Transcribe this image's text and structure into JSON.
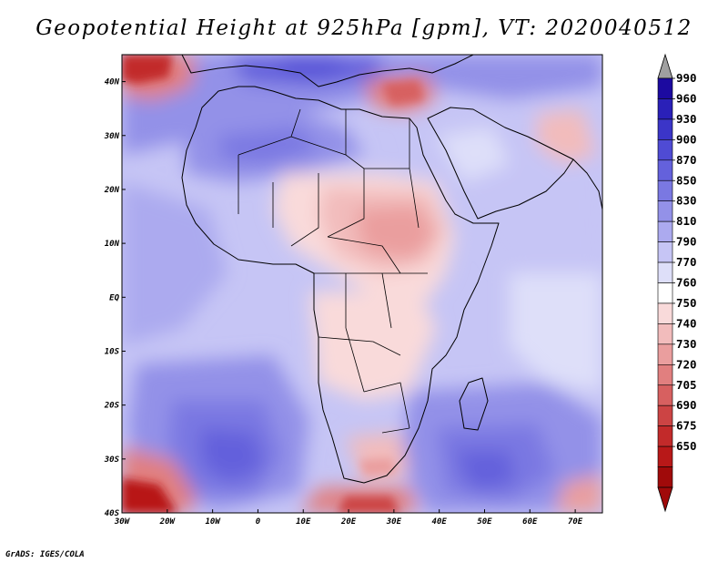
{
  "title": "Geopotential Height at 925hPa [gpm], VT: 2020040512",
  "credit": "GrADS: IGES/COLA",
  "map": {
    "region": "Africa and Middle East",
    "variable": "Geopotential Height",
    "level": "925hPa",
    "units": "gpm",
    "lon_range": [
      -30,
      76
    ],
    "lat_range": [
      -40,
      45
    ],
    "lon_ticks": [
      "30W",
      "20W",
      "10W",
      "0",
      "10E",
      "20E",
      "30E",
      "40E",
      "50E",
      "60E",
      "70E"
    ],
    "lat_ticks": [
      "40S",
      "30S",
      "20S",
      "10S",
      "EQ",
      "10N",
      "20N",
      "30N",
      "40N"
    ]
  },
  "colorbar": {
    "labels": [
      "990",
      "960",
      "930",
      "900",
      "870",
      "850",
      "830",
      "810",
      "790",
      "770",
      "760",
      "750",
      "740",
      "730",
      "720",
      "705",
      "690",
      "675",
      "650"
    ],
    "colors": [
      "#1c0aa0",
      "#2a20b8",
      "#3b35c8",
      "#4f4bd4",
      "#6461dc",
      "#7a78e2",
      "#9391e8",
      "#acaaef",
      "#c6c5f5",
      "#dedff9",
      "#ffffff",
      "#f9dada",
      "#f2bcbc",
      "#ea9e9e",
      "#e17f7f",
      "#d76060",
      "#cc4444",
      "#c22a2a",
      "#b81818",
      "#a00a0a"
    ],
    "top_triangle_color": "#a0a0a0",
    "bottom_triangle_color": "#a00a0a"
  }
}
